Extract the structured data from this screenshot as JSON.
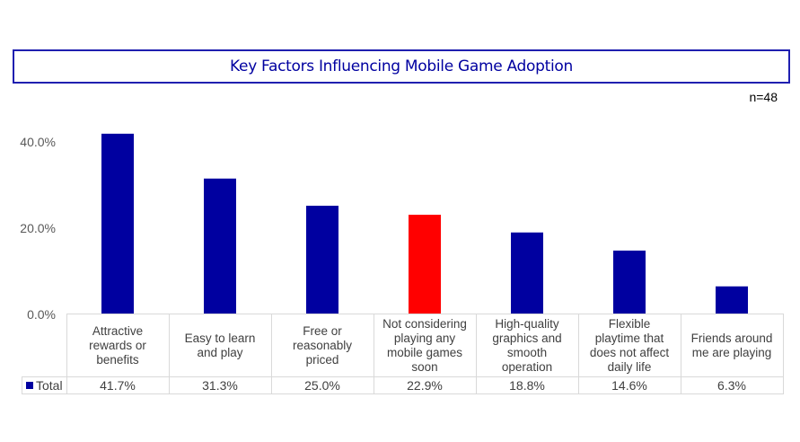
{
  "chart_data": {
    "type": "bar",
    "title": "Key Factors Influencing Mobile Game Adoption",
    "sample_size": "n=48",
    "categories": [
      "Attractive rewards or benefits",
      "Easy to learn and play",
      "Free or reasonably priced",
      "Not considering playing any mobile games soon",
      "High-quality graphics and smooth operation",
      "Flexible playtime that does not affect daily life",
      "Friends around me are playing"
    ],
    "category_lines": [
      [
        "Attractive",
        "rewards or",
        "benefits"
      ],
      [
        "Easy to learn",
        "and play"
      ],
      [
        "Free or",
        "reasonably",
        "priced"
      ],
      [
        "Not considering",
        "playing any",
        "mobile games",
        "soon"
      ],
      [
        "High-quality",
        "graphics and",
        "smooth",
        "operation"
      ],
      [
        "Flexible",
        "playtime that",
        "does not affect",
        "daily life"
      ],
      [
        "Friends around",
        "me are playing"
      ]
    ],
    "series": [
      {
        "name": "Total",
        "values": [
          41.7,
          31.3,
          25.0,
          22.9,
          18.8,
          14.6,
          6.3
        ],
        "value_labels": [
          "41.7%",
          "31.3%",
          "25.0%",
          "22.9%",
          "18.8%",
          "14.6%",
          "6.3%"
        ],
        "color": "#0000a0",
        "highlight_index": 3,
        "highlight_color": "#ff0000"
      }
    ],
    "xlabel": "",
    "ylabel": "",
    "ylim": [
      0,
      40
    ],
    "yticks": [
      0,
      20,
      40
    ],
    "ytick_labels": [
      "0.0%",
      "20.0%",
      "40.0%"
    ],
    "grid": false,
    "legend": "data-table-left"
  }
}
